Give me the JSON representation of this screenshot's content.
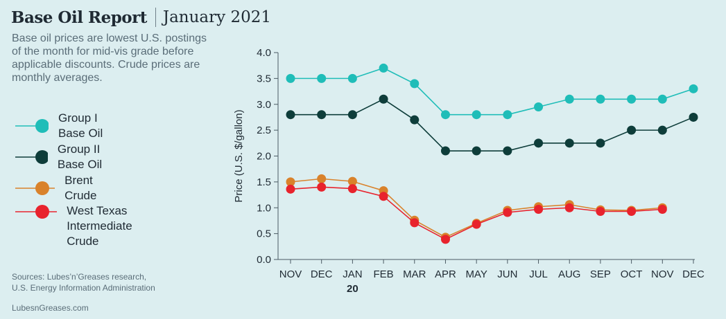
{
  "header": {
    "title": "Base Oil Report",
    "subtitle": "January 2021"
  },
  "description": "Base oil prices are lowest U.S. postings of the month for mid-vis grade before applicable discounts. Crude prices are monthly averages.",
  "footer": {
    "sources": "Sources: Lubes’n’Greases research,\nU.S. Energy Information Administration",
    "site": "LubesnGreases.com"
  },
  "chart_data": {
    "type": "line",
    "title": "",
    "xlabel": "",
    "ylabel": "Price (U.S. $/gallon)",
    "categories": [
      "NOV",
      "DEC",
      "JAN",
      "FEB",
      "MAR",
      "APR",
      "MAY",
      "JUN",
      "JUL",
      "AUG",
      "SEP",
      "OCT",
      "NOV",
      "DEC"
    ],
    "year_label": "20",
    "year_label_index": 2,
    "ylim": [
      0,
      4
    ],
    "yticks": [
      "0.0",
      "0.5",
      "1.0",
      "1.5",
      "2.0",
      "2.5",
      "3.0",
      "3.5",
      "4.0"
    ],
    "grid": false,
    "legend_position": "left",
    "series": [
      {
        "name": "Group I Base Oil",
        "color": "#1fbdb8",
        "values": [
          3.5,
          3.5,
          3.5,
          3.7,
          3.4,
          2.8,
          2.8,
          2.8,
          2.95,
          3.1,
          3.1,
          3.1,
          3.1,
          3.3
        ]
      },
      {
        "name": "Group II Base Oil",
        "color": "#0e3d3a",
        "values": [
          2.8,
          2.8,
          2.8,
          3.1,
          2.7,
          2.1,
          2.1,
          2.1,
          2.25,
          2.25,
          2.25,
          2.5,
          2.5,
          2.75
        ]
      },
      {
        "name": "Brent Crude",
        "color": "#d9822b",
        "values": [
          1.5,
          1.56,
          1.51,
          1.33,
          0.76,
          0.43,
          0.7,
          0.95,
          1.02,
          1.06,
          0.96,
          0.95,
          1.0,
          null
        ]
      },
      {
        "name": "West Texas\nIntermediate Crude",
        "color": "#e8232d",
        "values": [
          1.36,
          1.4,
          1.37,
          1.22,
          0.71,
          0.39,
          0.68,
          0.91,
          0.97,
          1.0,
          0.93,
          0.93,
          0.97,
          null
        ]
      }
    ]
  }
}
